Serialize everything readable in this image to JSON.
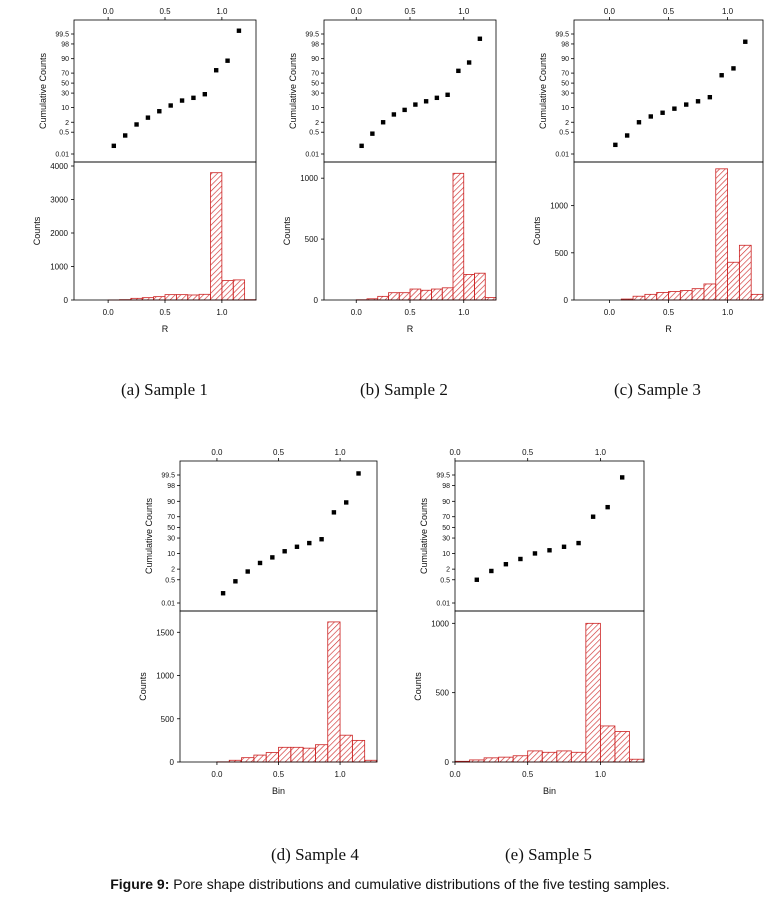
{
  "figure": {
    "label": "Figure 9:",
    "text": "Pore shape distributions and cumulative distributions of the five testing samples."
  },
  "colors": {
    "bar_stroke": "#cc2222",
    "hatch": "#d03030",
    "marker": "#000000"
  },
  "chart_data": [
    {
      "id": "sample1",
      "caption": "(a) Sample 1",
      "type": "bar",
      "xlabel": "R",
      "top_ylabel": "Cumulative Counts",
      "bottom_ylabel": "Counts",
      "xlim": [
        -0.3,
        1.3
      ],
      "x_ticks": [
        0.0,
        0.5,
        1.0
      ],
      "top_x_ticks": [
        0.0,
        0.5,
        1.0
      ],
      "ylim": [
        0,
        4000
      ],
      "y_ticks": [
        0,
        1000,
        2000,
        3000,
        4000
      ],
      "y_tick_labels": [
        "0",
        "1000",
        "2000",
        "3000",
        "4000"
      ],
      "prob_ticks": [
        0.01,
        0.5,
        2,
        10,
        30,
        50,
        70,
        90,
        98,
        99.5
      ],
      "bins": {
        "edges": [
          0.0,
          0.1,
          0.2,
          0.3,
          0.4,
          0.5,
          0.6,
          0.7,
          0.8,
          0.9,
          1.0,
          1.1,
          1.2,
          1.3
        ],
        "counts": [
          2,
          10,
          50,
          70,
          100,
          160,
          160,
          150,
          170,
          3800,
          580,
          600,
          10
        ]
      },
      "cumulative": {
        "x": [
          0.05,
          0.15,
          0.25,
          0.35,
          0.45,
          0.55,
          0.65,
          0.75,
          0.85,
          0.95,
          1.05,
          1.15
        ],
        "y": [
          0.05,
          0.3,
          1.5,
          3.5,
          7,
          12,
          18,
          22,
          28,
          75,
          88,
          99.7
        ]
      }
    },
    {
      "id": "sample2",
      "caption": "(b) Sample 2",
      "type": "bar",
      "xlabel": "R",
      "top_ylabel": "Cumulative Counts",
      "bottom_ylabel": "Counts",
      "xlim": [
        -0.3,
        1.3
      ],
      "x_ticks": [
        0.0,
        0.5,
        1.0
      ],
      "top_x_ticks": [
        0.0,
        0.5,
        1.0
      ],
      "ylim": [
        0,
        1100
      ],
      "y_ticks": [
        0,
        500,
        1000
      ],
      "y_tick_labels": [
        "0",
        "500",
        "1000"
      ],
      "prob_ticks": [
        0.01,
        0.5,
        2,
        10,
        30,
        50,
        70,
        90,
        98,
        99.5
      ],
      "bins": {
        "edges": [
          0.0,
          0.1,
          0.2,
          0.3,
          0.4,
          0.5,
          0.6,
          0.7,
          0.8,
          0.9,
          1.0,
          1.1,
          1.2,
          1.3
        ],
        "counts": [
          2,
          10,
          30,
          60,
          60,
          90,
          80,
          90,
          100,
          1040,
          210,
          220,
          20
        ]
      },
      "cumulative": {
        "x": [
          0.05,
          0.15,
          0.25,
          0.35,
          0.45,
          0.55,
          0.65,
          0.75,
          0.85,
          0.95,
          1.05,
          1.15
        ],
        "y": [
          0.05,
          0.4,
          2,
          5,
          8,
          13,
          17,
          22,
          27,
          74,
          86,
          99
        ]
      }
    },
    {
      "id": "sample3",
      "caption": "(c) Sample 3",
      "type": "bar",
      "xlabel": "R",
      "top_ylabel": "Cumulative Counts",
      "bottom_ylabel": "Counts",
      "xlim": [
        -0.3,
        1.3
      ],
      "x_ticks": [
        0.0,
        0.5,
        1.0
      ],
      "top_x_ticks": [
        0.0,
        0.5,
        1.0
      ],
      "ylim": [
        0,
        1420
      ],
      "y_ticks": [
        0,
        500,
        1000
      ],
      "y_tick_labels": [
        "0",
        "500",
        "1000"
      ],
      "prob_ticks": [
        0.01,
        0.5,
        2,
        10,
        30,
        50,
        70,
        90,
        98,
        99.5
      ],
      "bins": {
        "edges": [
          0.1,
          0.2,
          0.3,
          0.4,
          0.5,
          0.6,
          0.7,
          0.8,
          0.9,
          1.0,
          1.1,
          1.2,
          1.3
        ],
        "counts": [
          10,
          40,
          60,
          80,
          90,
          100,
          120,
          170,
          1390,
          400,
          580,
          60
        ]
      },
      "cumulative": {
        "x": [
          0.05,
          0.15,
          0.25,
          0.35,
          0.45,
          0.55,
          0.65,
          0.75,
          0.85,
          0.95,
          1.05,
          1.15
        ],
        "y": [
          0.06,
          0.3,
          2,
          4,
          6,
          9,
          13,
          17,
          23,
          66,
          78,
          98.5
        ]
      }
    },
    {
      "id": "sample4",
      "caption": "(d) Sample 4",
      "type": "bar",
      "xlabel": "Bin",
      "top_ylabel": "Cumulative Counts",
      "bottom_ylabel": "Counts",
      "xlim": [
        -0.3,
        1.3
      ],
      "x_ticks": [
        0.0,
        0.5,
        1.0
      ],
      "top_x_ticks": [
        0.0,
        0.5,
        1.0
      ],
      "ylim": [
        0,
        1700
      ],
      "y_ticks": [
        0,
        500,
        1000,
        1500
      ],
      "y_tick_labels": [
        "0",
        "500",
        "1000",
        "1500"
      ],
      "prob_ticks": [
        0.01,
        0.5,
        2,
        10,
        30,
        50,
        70,
        90,
        98,
        99.5
      ],
      "bins": {
        "edges": [
          0.0,
          0.1,
          0.2,
          0.3,
          0.4,
          0.5,
          0.6,
          0.7,
          0.8,
          0.9,
          1.0,
          1.1,
          1.2,
          1.3
        ],
        "counts": [
          2,
          20,
          50,
          80,
          110,
          170,
          170,
          160,
          200,
          1620,
          310,
          250,
          20
        ]
      },
      "cumulative": {
        "x": [
          0.05,
          0.15,
          0.25,
          0.35,
          0.45,
          0.55,
          0.65,
          0.75,
          0.85,
          0.95,
          1.05,
          1.15
        ],
        "y": [
          0.06,
          0.4,
          1.5,
          4,
          7,
          12,
          17,
          22,
          28,
          77,
          89,
          99.6
        ]
      }
    },
    {
      "id": "sample5",
      "caption": "(e) Sample 5",
      "type": "bar",
      "xlabel": "Bin",
      "top_ylabel": "Cumulative Counts",
      "bottom_ylabel": "Counts",
      "xlim": [
        0.0,
        1.3
      ],
      "x_ticks": [
        0.0,
        0.5,
        1.0
      ],
      "top_x_ticks": [
        0.0,
        0.5,
        1.0
      ],
      "ylim": [
        0,
        1060
      ],
      "y_ticks": [
        0,
        500,
        1000
      ],
      "y_tick_labels": [
        "0",
        "500",
        "1000"
      ],
      "prob_ticks": [
        0.01,
        0.5,
        2,
        10,
        30,
        50,
        70,
        90,
        98,
        99.5
      ],
      "bins": {
        "edges": [
          0.0,
          0.1,
          0.2,
          0.3,
          0.4,
          0.5,
          0.6,
          0.7,
          0.8,
          0.9,
          1.0,
          1.1,
          1.2,
          1.3
        ],
        "counts": [
          5,
          15,
          30,
          35,
          45,
          80,
          70,
          80,
          70,
          1000,
          260,
          220,
          20
        ]
      },
      "cumulative": {
        "x": [
          0.15,
          0.25,
          0.35,
          0.45,
          0.55,
          0.65,
          0.75,
          0.85,
          0.95,
          1.05,
          1.15
        ],
        "y": [
          0.5,
          1.6,
          3.5,
          6,
          10,
          13,
          17,
          22,
          70,
          84,
          99.3
        ]
      }
    }
  ]
}
